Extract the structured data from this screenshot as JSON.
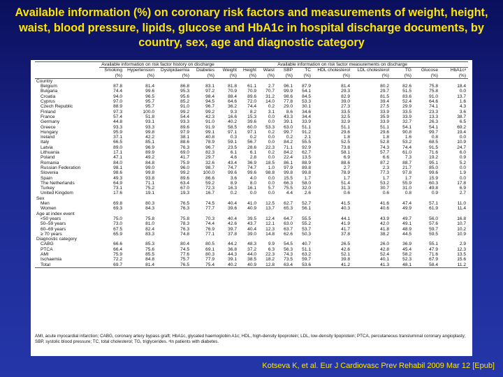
{
  "slide": {
    "title": "Available information (%) on coronary risk factors and measurements of weight, height, waist, blood pressure, lipids, glucose and HbA1c in hospital discharge documents, by country, sex, age and diagnostic category",
    "source": "Kotseva K, et al. Eur J Cardiovasc Prev Rehabil 2009 Mar 12 [Epub]"
  },
  "table": {
    "group_history": "Available information on risk factor history on discharge",
    "group_measurements": "Available information on risk factor measurements on discharge",
    "columns": [
      {
        "name": "",
        "unit": ""
      },
      {
        "name": "Smoking",
        "unit": "(%)"
      },
      {
        "name": "Hypertension",
        "unit": "(%)"
      },
      {
        "name": "Dyslipidaemia",
        "unit": "(%)"
      },
      {
        "name": "Diabetes",
        "unit": "(%)"
      },
      {
        "name": "Weight",
        "unit": "(%)"
      },
      {
        "name": "Height",
        "unit": "(%)"
      },
      {
        "name": "Waist",
        "unit": "(%)"
      },
      {
        "name": "SBP",
        "unit": "(%)"
      },
      {
        "name": "TC",
        "unit": "(%)"
      },
      {
        "name": "HDL cholesterol",
        "unit": "(%)"
      },
      {
        "name": "LDL cholesterol",
        "unit": "(%)"
      },
      {
        "name": "TG",
        "unit": "(%)"
      },
      {
        "name": "Glucose",
        "unit": "(%)"
      },
      {
        "name": "HbA1cᵃ",
        "unit": "(%)"
      }
    ],
    "rows": [
      {
        "section": "Country"
      },
      {
        "label": "Belgium",
        "values": [
          "87.8",
          "81.4",
          "86.8",
          "83.1",
          "81.8",
          "61.1",
          "2.7",
          "96.1",
          "87.9",
          "81.4",
          "80.2",
          "82.6",
          "75.8",
          "18.4"
        ]
      },
      {
        "label": "Bulgaria",
        "values": [
          "74.4",
          "99.6",
          "95.3",
          "97.2",
          "70.9",
          "70.9",
          "70.7",
          "99.9",
          "54.1",
          "29.3",
          "29.7",
          "51.5",
          "75.8",
          "0.0"
        ]
      },
      {
        "label": "Croatia",
        "values": [
          "94.0",
          "96.5",
          "95.6",
          "98.4",
          "88.4",
          "89.6",
          "31.2",
          "98.6",
          "84.5",
          "82.9",
          "81.5",
          "83.6",
          "91.0",
          "13.7"
        ]
      },
      {
        "label": "Cyprus",
        "values": [
          "97.0",
          "95.7",
          "85.2",
          "94.5",
          "64.6",
          "72.0",
          "14.0",
          "77.8",
          "53.3",
          "39.0",
          "39.4",
          "52.4",
          "64.6",
          "1.6"
        ]
      },
      {
        "label": "Czech Republic",
        "values": [
          "88.9",
          "95.7",
          "91.0",
          "96.7",
          "36.2",
          "74.4",
          "0.2",
          "29.0",
          "30.1",
          "27.3",
          "27.5",
          "29.9",
          "74.1",
          "4.3"
        ]
      },
      {
        "label": "Finland",
        "values": [
          "97.3",
          "100.0",
          "99.2",
          "99.2",
          "9.3",
          "8.2",
          "3.1",
          "8.6",
          "34.6",
          "33.5",
          "33.9",
          "33.5",
          "23.3",
          "3.6"
        ]
      },
      {
        "label": "France",
        "values": [
          "57.4",
          "51.8",
          "54.4",
          "42.3",
          "16.6",
          "15.3",
          "0.0",
          "43.3",
          "34.4",
          "32.5",
          "35.9",
          "33.9",
          "13.3",
          "38.7"
        ]
      },
      {
        "label": "Germany",
        "values": [
          "44.8",
          "93.1",
          "93.3",
          "91.0",
          "40.2",
          "39.6",
          "0.0",
          "39.1",
          "33.9",
          "32.9",
          "33.9",
          "32.7",
          "26.3",
          "6.5"
        ]
      },
      {
        "label": "Greece",
        "values": [
          "93.3",
          "93.3",
          "89.6",
          "91.9",
          "58.5",
          "60.0",
          "53.3",
          "63.0",
          "51.1",
          "51.1",
          "51.1",
          "54.1",
          "54.1",
          "69.2"
        ]
      },
      {
        "label": "Hungary",
        "values": [
          "95.9",
          "99.8",
          "97.9",
          "99.1",
          "97.1",
          "97.1",
          "0.2",
          "99.7",
          "91.2",
          "29.6",
          "29.6",
          "90.8",
          "99.7",
          "19.4"
        ]
      },
      {
        "label": "Ireland",
        "values": [
          "37.1",
          "42.2",
          "38.1",
          "40.8",
          "0.3",
          "0.2",
          "0.0",
          "0.2",
          "2.1",
          "1.8",
          "1.8",
          "1.6",
          "0.8",
          "0.0"
        ]
      },
      {
        "label": "Italy",
        "values": [
          "66.5",
          "85.1",
          "88.6",
          "78.9",
          "59.1",
          "56.7",
          "0.0",
          "84.2",
          "55.5",
          "52.5",
          "52.8",
          "53.2",
          "68.5",
          "10.9"
        ]
      },
      {
        "label": "Latvia",
        "values": [
          "89.0",
          "96.9",
          "76.3",
          "96.7",
          "23.5",
          "28.6",
          "22.3",
          "71.1",
          "92.9",
          "73.8",
          "74.3",
          "74.4",
          "91.5",
          "24.7"
        ]
      },
      {
        "label": "Lithuania",
        "values": [
          "17.1",
          "89.9",
          "69.0",
          "82.3",
          "6.1",
          "6.1",
          "0.2",
          "84.2",
          "62.7",
          "58.1",
          "57.7",
          "61.0",
          "71.6",
          "6.0"
        ]
      },
      {
        "label": "Poland",
        "values": [
          "47.1",
          "49.2",
          "41.7",
          "29.7",
          "4.6",
          "2.8",
          "0.0",
          "22.4",
          "13.5",
          "6.9",
          "6.6",
          "7.3",
          "19.2",
          "0.9"
        ]
      },
      {
        "label": "Romania",
        "values": [
          "84.0",
          "84.8",
          "75.9",
          "32.6",
          "43.4",
          "36.9",
          "18.5",
          "86.1",
          "88.9",
          "88.6",
          "87.2",
          "88.7",
          "95.1",
          "5.2"
        ]
      },
      {
        "label": "Russian Federation",
        "values": [
          "98.1",
          "99.0",
          "96.0",
          "98.7",
          "74.7",
          "74.7",
          "1.0",
          "97.9",
          "89.8",
          "2.7",
          "2.3",
          "21.7",
          "85.0",
          "0.0"
        ]
      },
      {
        "label": "Slovenia",
        "values": [
          "98.6",
          "99.8",
          "99.2",
          "100.0",
          "99.6",
          "99.6",
          "98.8",
          "99.8",
          "99.8",
          "78.9",
          "77.3",
          "97.8",
          "99.6",
          "1.9"
        ]
      },
      {
        "label": "Spain",
        "values": [
          "49.3",
          "93.8",
          "89.6",
          "86.6",
          "3.6",
          "4.0",
          "0.0",
          "15.5",
          "1.7",
          "1.7",
          "1.7",
          "1.7",
          "15.9",
          "0.0"
        ]
      },
      {
        "label": "The Netherlands",
        "values": [
          "64.9",
          "71.1",
          "63.4",
          "59.2",
          "8.9",
          "8.0",
          "0.0",
          "66.3",
          "58.0",
          "51.4",
          "53.2",
          "55.9",
          "60.3",
          "17.8"
        ]
      },
      {
        "label": "Turkey",
        "values": [
          "73.1",
          "75.2",
          "67.0",
          "72.3",
          "16.3",
          "16.1",
          "5.7",
          "75.5",
          "32.0",
          "31.3",
          "30.7",
          "31.0",
          "49.8",
          "6.9"
        ]
      },
      {
        "label": "United Kingdom",
        "values": [
          "17.6",
          "19.1",
          "19.3",
          "16.7",
          "0.2",
          "0.0",
          "0.0",
          "4.4",
          "2.6",
          "0.6",
          "0.6",
          "0.8",
          "0.9",
          "2.7"
        ]
      },
      {
        "section": "Sex"
      },
      {
        "label": "Men",
        "values": [
          "69.8",
          "80.3",
          "76.5",
          "74.5",
          "40.4",
          "41.0",
          "12.5",
          "62.7",
          "52.7",
          "41.5",
          "41.6",
          "47.4",
          "57.1",
          "11.0"
        ]
      },
      {
        "label": "Women",
        "values": [
          "69.3",
          "84.3",
          "76.3",
          "77.7",
          "39.6",
          "40.9",
          "13.7",
          "65.3",
          "56.1",
          "40.3",
          "40.6",
          "49.9",
          "61.9",
          "11.4"
        ]
      },
      {
        "section": "Age at index event"
      },
      {
        "label": "<50 years",
        "values": [
          "75.0",
          "75.8",
          "75.8",
          "70.3",
          "40.4",
          "39.5",
          "12.4",
          "64.7",
          "55.5",
          "44.1",
          "43.9",
          "49.7",
          "56.0",
          "16.8"
        ]
      },
      {
        "label": "50–59 years",
        "values": [
          "73.0",
          "81.0",
          "78.3",
          "74.4",
          "42.6",
          "43.7",
          "12.1",
          "63.0",
          "55.2",
          "41.9",
          "42.0",
          "49.1",
          "57.6",
          "10.7"
        ]
      },
      {
        "label": "60–69 years",
        "values": [
          "67.5",
          "82.4",
          "76.3",
          "76.9",
          "39.7",
          "40.4",
          "12.3",
          "63.7",
          "53.7",
          "41.7",
          "41.8",
          "48.9",
          "59.7",
          "10.2"
        ]
      },
      {
        "label": "≥ 70 years",
        "values": [
          "65.9",
          "83.3",
          "74.8",
          "77.1",
          "37.8",
          "39.0",
          "14.8",
          "62.6",
          "50.3",
          "37.8",
          "38.2",
          "44.5",
          "59.5",
          "10.9"
        ]
      },
      {
        "section": "Diagnostic category"
      },
      {
        "label": "CABG",
        "values": [
          "66.6",
          "85.3",
          "80.4",
          "80.5",
          "44.2",
          "48.3",
          "9.9",
          "54.5",
          "40.7",
          "26.5",
          "26.0",
          "36.9",
          "55.1",
          "2.9"
        ]
      },
      {
        "label": "PTCA",
        "values": [
          "66.4",
          "75.6",
          "74.5",
          "69.1",
          "36.8",
          "37.2",
          "6.3",
          "56.3",
          "51.1",
          "42.6",
          "42.8",
          "45.4",
          "47.9",
          "12.3"
        ]
      },
      {
        "label": "AMI",
        "values": [
          "75.9",
          "85.5",
          "77.6",
          "80.3",
          "44.3",
          "44.0",
          "22.3",
          "74.3",
          "63.2",
          "52.1",
          "52.4",
          "58.2",
          "71.6",
          "13.5"
        ]
      },
      {
        "label": "Ischaemia",
        "values": [
          "72.2",
          "84.8",
          "75.7",
          "77.9",
          "39.1",
          "38.5",
          "18.2",
          "73.5",
          "59.7",
          "39.8",
          "40.1",
          "52.3",
          "67.9",
          "15.6"
        ]
      },
      {
        "label": "Total",
        "values": [
          "69.7",
          "81.4",
          "76.5",
          "75.4",
          "40.2",
          "40.9",
          "12.8",
          "63.4",
          "53.6",
          "41.2",
          "41.3",
          "48.1",
          "58.4",
          "11.2"
        ]
      }
    ],
    "footnote": "AMI, acute myocardial infarction; CABG, coronary artery bypass graft; HbA1c, glycated haemoglobin A1c; HDL, high-density lipoprotein; LDL, low-density lipoprotein; PTCA, percutaneous transluminal coronary angioplasty; SBP, systolic blood pressure; TC, total cholesterol; TG, triglycerides. ᵃIn patients with diabetes."
  }
}
